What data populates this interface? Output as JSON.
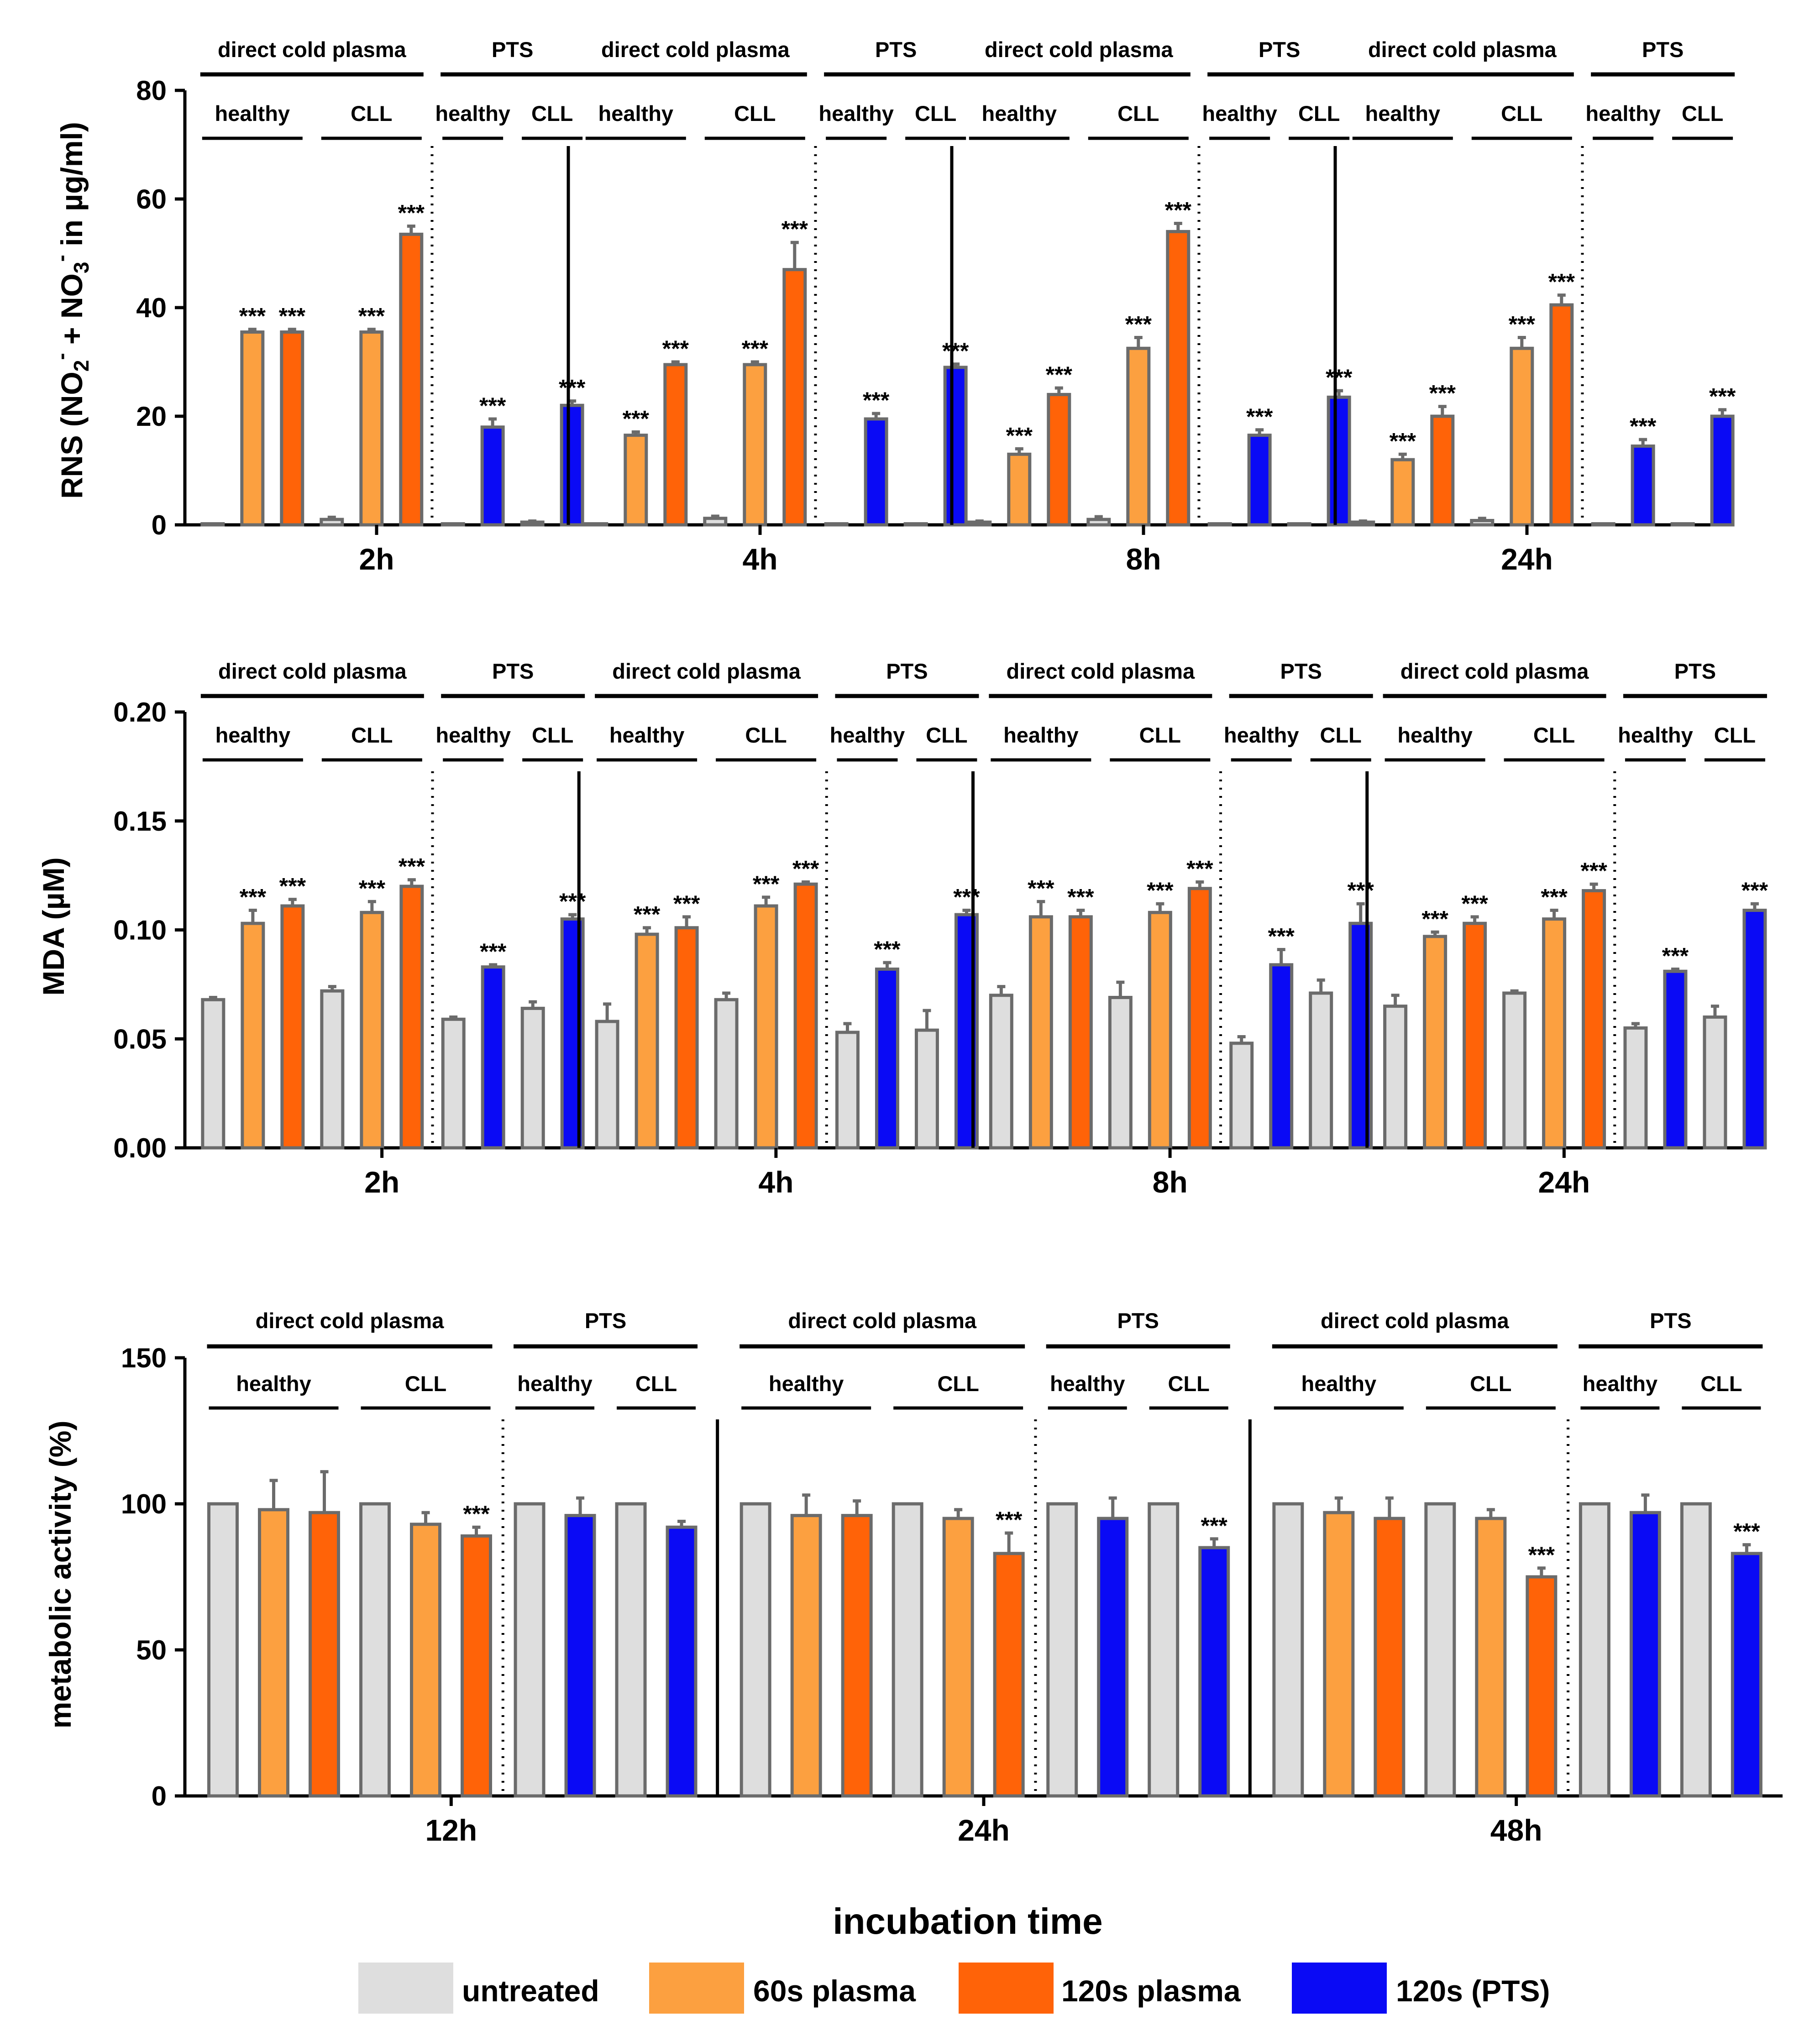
{
  "colors": {
    "untreated": "#dedede",
    "plasma60": "#fca040",
    "plasma120": "#ff6308",
    "pts120": "#0a0af5",
    "bar_edge": "#6b6b6b",
    "axis": "#000000"
  },
  "legend": {
    "title": "incubation time",
    "items": [
      {
        "key": "untreated",
        "label": "untreated"
      },
      {
        "key": "plasma60",
        "label": "60s plasma"
      },
      {
        "key": "plasma120",
        "label": "120s plasma"
      },
      {
        "key": "pts120",
        "label": "120s (PTS)"
      }
    ]
  },
  "labels": {
    "direct": "direct cold plasma",
    "pts": "PTS",
    "healthy": "healthy",
    "cll": "CLL",
    "sig": "***"
  },
  "chart_data": [
    {
      "type": "bar",
      "title": "RNS",
      "ylabel": "RNS (NO₂⁻ + NO₃⁻ in µg/ml)",
      "ylabel_parts": {
        "a": "RNS (NO",
        "b": "2",
        "c": "-",
        "d": " + NO",
        "e": "3",
        "f": "-",
        "g": " in µg/ml)"
      },
      "ylim": [
        0,
        80
      ],
      "yticks": [
        "0",
        "20",
        "40",
        "60",
        "80"
      ],
      "ytick_values": [
        0,
        20,
        40,
        60,
        80
      ],
      "bar_order": [
        "untreated",
        "plasma60",
        "plasma120",
        "untreated",
        "plasma60",
        "plasma120",
        "untreated",
        "pts120",
        "untreated",
        "pts120"
      ],
      "categories": [
        "2h",
        "4h",
        "8h",
        "24h"
      ],
      "groups": [
        {
          "label": "2h",
          "values": [
            0.2,
            35.5,
            35.5,
            1.0,
            35.5,
            53.5,
            0.2,
            18.0,
            0.5,
            22.0
          ],
          "errors": [
            0,
            0.5,
            0.5,
            0.4,
            0.5,
            1.5,
            0,
            1.5,
            0.2,
            0.8
          ],
          "sig": [
            "",
            "***",
            "***",
            "",
            "***",
            "***",
            "",
            "***",
            "",
            "***"
          ]
        },
        {
          "label": "4h",
          "values": [
            0.2,
            16.5,
            29.5,
            1.2,
            29.5,
            47.0,
            0.2,
            19.5,
            0.2,
            29.0
          ],
          "errors": [
            0,
            0.6,
            0.5,
            0.4,
            0.5,
            5.0,
            0,
            1.0,
            0,
            0.6
          ],
          "sig": [
            "",
            "***",
            "***",
            "",
            "***",
            "***",
            "",
            "***",
            "",
            "***"
          ]
        },
        {
          "label": "8h",
          "values": [
            0.5,
            13.0,
            24.0,
            1.0,
            32.5,
            54.0,
            0.2,
            16.5,
            0.2,
            23.5
          ],
          "errors": [
            0.2,
            1.0,
            1.2,
            0.5,
            2.0,
            1.5,
            0,
            1.0,
            0,
            1.2
          ],
          "sig": [
            "",
            "***",
            "***",
            "",
            "***",
            "***",
            "",
            "***",
            "",
            "***"
          ]
        },
        {
          "label": "24h",
          "values": [
            0.5,
            12.0,
            20.0,
            0.8,
            32.5,
            40.5,
            0.2,
            14.5,
            0.2,
            20.0
          ],
          "errors": [
            0.2,
            1.0,
            1.8,
            0.4,
            2.0,
            1.8,
            0,
            1.2,
            0,
            1.2
          ],
          "sig": [
            "",
            "***",
            "***",
            "",
            "***",
            "***",
            "",
            "***",
            "",
            "***"
          ]
        }
      ]
    },
    {
      "type": "bar",
      "title": "MDA",
      "ylabel": "MDA (µM)",
      "ylim": [
        0,
        0.2
      ],
      "yticks": [
        "0.00",
        "0.05",
        "0.10",
        "0.15",
        "0.20"
      ],
      "ytick_values": [
        0,
        0.05,
        0.1,
        0.15,
        0.2
      ],
      "bar_order": [
        "untreated",
        "plasma60",
        "plasma120",
        "untreated",
        "plasma60",
        "plasma120",
        "untreated",
        "pts120",
        "untreated",
        "pts120"
      ],
      "categories": [
        "2h",
        "4h",
        "8h",
        "24h"
      ],
      "groups": [
        {
          "label": "2h",
          "values": [
            0.068,
            0.103,
            0.111,
            0.072,
            0.108,
            0.12,
            0.059,
            0.083,
            0.064,
            0.105
          ],
          "errors": [
            0.001,
            0.006,
            0.003,
            0.002,
            0.005,
            0.003,
            0.001,
            0.001,
            0.003,
            0.002
          ],
          "sig": [
            "",
            "***",
            "***",
            "",
            "***",
            "***",
            "",
            "***",
            "",
            "***"
          ]
        },
        {
          "label": "4h",
          "values": [
            0.058,
            0.098,
            0.101,
            0.068,
            0.111,
            0.121,
            0.053,
            0.082,
            0.054,
            0.107
          ],
          "errors": [
            0.008,
            0.003,
            0.005,
            0.003,
            0.004,
            0.001,
            0.004,
            0.003,
            0.009,
            0.002
          ],
          "sig": [
            "",
            "***",
            "***",
            "",
            "***",
            "***",
            "",
            "***",
            "",
            "***"
          ]
        },
        {
          "label": "8h",
          "values": [
            0.07,
            0.106,
            0.106,
            0.069,
            0.108,
            0.119,
            0.048,
            0.084,
            0.071,
            0.103
          ],
          "errors": [
            0.004,
            0.007,
            0.003,
            0.007,
            0.004,
            0.003,
            0.003,
            0.007,
            0.006,
            0.009
          ],
          "sig": [
            "",
            "***",
            "***",
            "",
            "***",
            "***",
            "",
            "***",
            "",
            "***"
          ]
        },
        {
          "label": "24h",
          "values": [
            0.065,
            0.097,
            0.103,
            0.071,
            0.105,
            0.118,
            0.055,
            0.081,
            0.06,
            0.109
          ],
          "errors": [
            0.005,
            0.002,
            0.003,
            0.001,
            0.004,
            0.003,
            0.002,
            0.001,
            0.005,
            0.003
          ],
          "sig": [
            "",
            "***",
            "***",
            "",
            "***",
            "***",
            "",
            "***",
            "",
            "***"
          ]
        }
      ]
    },
    {
      "type": "bar",
      "title": "metabolic activity",
      "ylabel": "metabolic activity (%)",
      "ylim": [
        0,
        150
      ],
      "yticks": [
        "0",
        "50",
        "100",
        "150"
      ],
      "ytick_values": [
        0,
        50,
        100,
        150
      ],
      "bar_order": [
        "untreated",
        "plasma60",
        "plasma120",
        "untreated",
        "plasma60",
        "plasma120",
        "untreated",
        "pts120",
        "untreated",
        "pts120"
      ],
      "categories": [
        "12h",
        "24h",
        "48h"
      ],
      "groups": [
        {
          "label": "12h",
          "values": [
            100,
            98,
            97,
            100,
            93,
            89,
            100,
            96,
            100,
            92
          ],
          "errors": [
            0,
            10,
            14,
            0,
            4,
            3,
            0,
            6,
            0,
            2
          ],
          "sig": [
            "",
            "",
            "",
            "",
            "",
            "***",
            "",
            "",
            "",
            ""
          ]
        },
        {
          "label": "24h",
          "values": [
            100,
            96,
            96,
            100,
            95,
            83,
            100,
            95,
            100,
            85
          ],
          "errors": [
            0,
            7,
            5,
            0,
            3,
            7,
            0,
            7,
            0,
            3
          ],
          "sig": [
            "",
            "",
            "",
            "",
            "",
            "***",
            "",
            "",
            "",
            "***"
          ]
        },
        {
          "label": "48h",
          "values": [
            100,
            97,
            95,
            100,
            95,
            75,
            100,
            97,
            100,
            83
          ],
          "errors": [
            0,
            5,
            7,
            0,
            3,
            3,
            0,
            6,
            0,
            3
          ],
          "sig": [
            "",
            "",
            "",
            "",
            "",
            "***",
            "",
            "",
            "",
            "***"
          ]
        }
      ]
    }
  ]
}
